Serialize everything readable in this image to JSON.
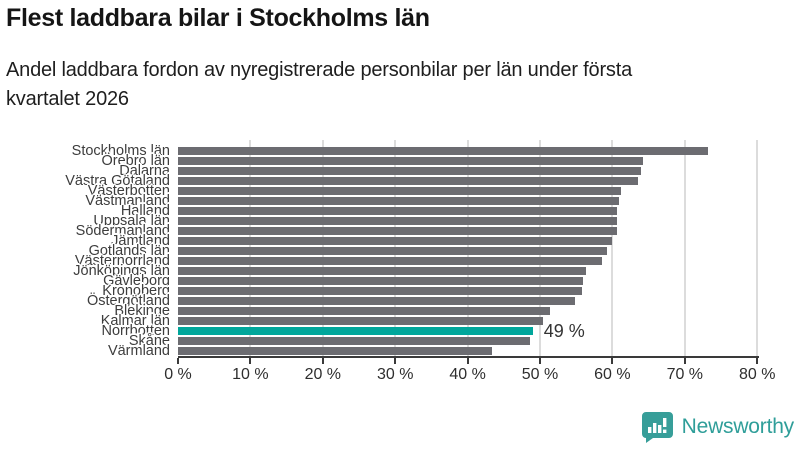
{
  "header": {
    "title": "Flest laddbara bilar i Stockholms län",
    "subtitle": "Andel laddbara fordon av nyregistrerade personbilar per län under första kvartalet 2026",
    "subtitle_line1": "Andel laddbara fordon av nyregistrerade personbilar per län under första",
    "subtitle_line2": "kvartalet 2026"
  },
  "chart_data": {
    "type": "bar",
    "orientation": "horizontal",
    "title": "Flest laddbara bilar i Stockholms län",
    "subtitle": "Andel laddbara fordon av nyregistrerade personbilar per län under första kvartalet 2026",
    "xlabel": "",
    "ylabel": "",
    "xlim": [
      0,
      80
    ],
    "grid": "vertical",
    "x_ticks": [
      "0 %",
      "10 %",
      "20 %",
      "30 %",
      "40 %",
      "50 %",
      "60 %",
      "70 %",
      "80 %"
    ],
    "x_tick_values": [
      0,
      10,
      20,
      30,
      40,
      50,
      60,
      70,
      80
    ],
    "categories": [
      "Stockholms län",
      "Örebro län",
      "Dalarna",
      "Västra Götaland",
      "Västerbotten",
      "Västmanland",
      "Halland",
      "Uppsala län",
      "Södermanland",
      "Jämtland",
      "Gotlands län",
      "Västernorrland",
      "Jönköpings län",
      "Gävleborg",
      "Kronoberg",
      "Östergötland",
      "Blekinge",
      "Kalmar län",
      "Norrbotten",
      "Skåne",
      "Värmland"
    ],
    "values": [
      73.2,
      64.2,
      63.9,
      63.6,
      61.2,
      60.9,
      60.7,
      60.7,
      60.6,
      59.9,
      59.3,
      58.6,
      56.4,
      56.0,
      55.8,
      54.9,
      51.4,
      50.4,
      49,
      48.6,
      43.4
    ],
    "unit": "%",
    "bar_color": "#6c6c71",
    "highlight_index": 18,
    "highlight_category": "Norrbotten",
    "highlight_color": "#00a69b",
    "highlight_label": "49 %"
  },
  "footer": {
    "brand": "Newsworthy"
  },
  "colors": {
    "background": "#ffffff",
    "bar_gray": "#6c6c71",
    "bar_teal": "#00a69b",
    "gridline": "#dcdcdc",
    "axis": "#3a3a3a",
    "logo_teal": "#379e99"
  }
}
